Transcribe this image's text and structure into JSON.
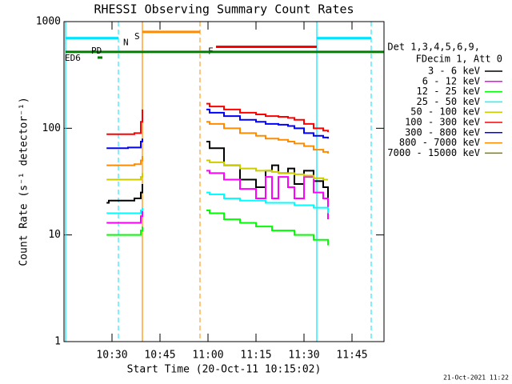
{
  "chart_data": {
    "type": "line",
    "title": "RHESSI Observing Summary Count Rates",
    "xlabel": "Start Time (20-Oct-11 10:15:02)",
    "ylabel": "Count Rate (s⁻¹ detector⁻¹)",
    "legend_header": [
      "Det 1,3,4,5,6,9,",
      "FDecim 1, Att 0"
    ],
    "footer": "21-Oct-2021 11:22",
    "log_y": true,
    "xlim": [
      0,
      100
    ],
    "xticks": [
      {
        "value": 15,
        "label": "10:30"
      },
      {
        "value": 30,
        "label": "10:45"
      },
      {
        "value": 45,
        "label": "11:00"
      },
      {
        "value": 60,
        "label": "11:15"
      },
      {
        "value": 75,
        "label": "11:30"
      },
      {
        "value": 90,
        "label": "11:45"
      }
    ],
    "ylim": [
      1,
      1000
    ],
    "yticks": [
      1,
      10,
      100,
      1000
    ],
    "x": [
      13.3,
      14,
      17,
      20,
      22,
      24,
      24.5,
      34,
      44.5,
      45.5,
      50,
      55,
      60,
      63,
      65,
      67,
      70,
      72,
      75,
      78,
      81,
      82.5
    ],
    "series": [
      {
        "name": "3 - 6 keV",
        "color": "#000000",
        "values": [
          20,
          21,
          21,
          21,
          22,
          25,
          30,
          null,
          75,
          65,
          45,
          33,
          28,
          40,
          45,
          38,
          42,
          30,
          40,
          32,
          28,
          17
        ]
      },
      {
        "name": "6 - 12 keV",
        "color": "#ff00ff",
        "values": [
          13,
          13,
          13,
          13,
          13,
          15,
          17,
          null,
          40,
          38,
          33,
          27,
          22,
          35,
          22,
          35,
          28,
          22,
          35,
          25,
          22,
          14
        ]
      },
      {
        "name": "12 - 25 keV",
        "color": "#00ff00",
        "values": [
          10,
          10,
          10,
          10,
          10,
          11,
          12,
          null,
          17,
          16,
          14,
          13,
          12,
          12,
          11,
          11,
          11,
          10,
          10,
          9,
          9,
          8
        ]
      },
      {
        "name": "25 - 50 keV",
        "color": "#00ffff",
        "values": [
          16,
          16,
          16,
          16,
          16,
          17,
          18,
          null,
          25,
          24,
          22,
          21,
          21,
          20,
          20,
          20,
          20,
          19,
          19,
          18,
          18,
          16
        ]
      },
      {
        "name": "50 - 100 keV",
        "color": "#cccc00",
        "values": [
          33,
          33,
          33,
          33,
          33,
          35,
          38,
          null,
          50,
          48,
          45,
          42,
          40,
          40,
          39,
          38,
          38,
          37,
          36,
          34,
          33,
          33
        ]
      },
      {
        "name": "100 - 300 keV",
        "color": "#ff0000",
        "values": [
          88,
          88,
          88,
          88,
          90,
          115,
          150,
          null,
          170,
          160,
          150,
          140,
          135,
          130,
          130,
          128,
          125,
          120,
          110,
          100,
          95,
          92
        ]
      },
      {
        "name": "300 - 800 keV",
        "color": "#0000ff",
        "values": [
          65,
          65,
          65,
          66,
          66,
          75,
          80,
          null,
          150,
          140,
          130,
          120,
          115,
          110,
          110,
          108,
          105,
          100,
          90,
          85,
          82,
          80
        ]
      },
      {
        "name": "800 - 7000 keV",
        "color": "#ff8c00",
        "values": [
          45,
          45,
          45,
          45,
          46,
          50,
          55,
          null,
          115,
          110,
          100,
          90,
          85,
          80,
          80,
          78,
          75,
          72,
          68,
          63,
          60,
          58
        ]
      },
      {
        "name": "7000 - 15000 keV",
        "color": "#808000",
        "values": [
          null,
          null,
          null,
          null,
          null,
          null,
          null,
          null,
          null,
          null,
          null,
          null,
          null,
          null,
          null,
          null,
          null,
          null,
          null,
          null,
          null,
          null
        ]
      }
    ],
    "annotations": [
      {
        "label": "N",
        "color": "#00e5ff",
        "level": 700,
        "segments": [
          [
            0.5,
            17
          ],
          [
            79,
            96
          ]
        ],
        "vlines": true
      },
      {
        "label": "S",
        "color": "#ff8c00",
        "level": 800,
        "segments": [
          [
            24.5,
            42.5
          ]
        ],
        "vlines": true
      },
      {
        "label": "F",
        "color": "#ff0000",
        "level": 580,
        "segments": [
          [
            47.5,
            79
          ]
        ],
        "vlines": false
      },
      {
        "label": "PD",
        "color": "#008000",
        "level": 520,
        "segments": [
          [
            0.5,
            100
          ]
        ],
        "vlines": false
      },
      {
        "label": "ED6",
        "color": "#008000",
        "level": 460,
        "segments": [
          [
            10.5,
            12
          ]
        ],
        "vlines": false
      }
    ]
  }
}
